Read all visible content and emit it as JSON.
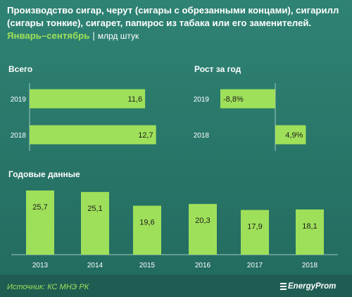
{
  "header": {
    "title_line1": "Производство сигар, черут (сигары с обрезанными концами), сигарилл",
    "title_line2": "(сигары тонкие), сигарет, папирос из табака или его заменителей.",
    "period": "Январь–сентябрь",
    "separator": "|",
    "unit": "млрд штук"
  },
  "colors": {
    "background": "#2b7a6d",
    "bar": "#9fe05a",
    "accent_text": "#9fe05a",
    "label_text": "#1b1b1b"
  },
  "chart_data": [
    {
      "type": "bar",
      "orientation": "horizontal",
      "title": "Всего",
      "categories": [
        "2019",
        "2018"
      ],
      "values": [
        11.6,
        12.7
      ],
      "value_labels": [
        "11,6",
        "12,7"
      ],
      "xlim": [
        0,
        13.5
      ]
    },
    {
      "type": "bar",
      "orientation": "horizontal",
      "title": "Рост за год",
      "categories": [
        "2019",
        "2018"
      ],
      "values": [
        -8.8,
        4.9
      ],
      "value_labels": [
        "-8,8%",
        "4,9%"
      ],
      "xlim": [
        -10,
        10
      ]
    },
    {
      "type": "bar",
      "orientation": "vertical",
      "title": "Годовые данные",
      "categories": [
        "2013",
        "2014",
        "2015",
        "2016",
        "2017",
        "2018"
      ],
      "values": [
        25.7,
        25.1,
        19.6,
        20.3,
        17.9,
        18.1
      ],
      "value_labels": [
        "25,7",
        "25,1",
        "19,6",
        "20,3",
        "17,9",
        "18,1"
      ],
      "ylim": [
        0,
        28
      ]
    }
  ],
  "footer": {
    "source": "Источник: КС МНЭ РК",
    "brand": "EnergyProm"
  }
}
